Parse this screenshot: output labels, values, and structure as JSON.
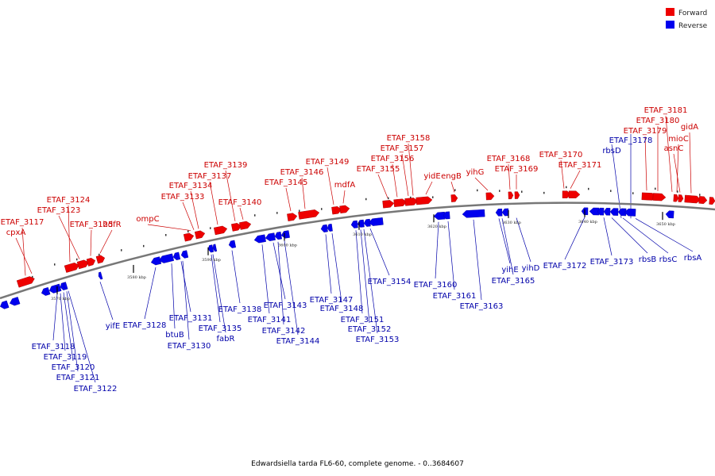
{
  "caption": "Edwardsiella tarda FL6-60, complete genome. - 0..3684607",
  "legend": [
    {
      "label": "Forward",
      "color": "#ee0000"
    },
    {
      "label": "Reverse",
      "color": "#0000ee"
    }
  ],
  "colors": {
    "forward": "#ee0000",
    "reverse": "#0000ee",
    "backbone": "#777777",
    "leader_fwd": "#cc0000",
    "leader_rev": "#0000aa"
  },
  "ticks": [
    "3570 kbp",
    "3580 kbp",
    "3590 kbp",
    "3600 kbp",
    "3610 kbp",
    "3620 kbp",
    "3630 kbp",
    "3640 kbp",
    "3650 kbp"
  ],
  "forward_genes": [
    "ETAF_3117",
    "cpxA",
    "ETAF_3124",
    "ETAF_3123",
    "ETAF_3125",
    "hdfR",
    "ompC",
    "ETAF_3133",
    "ETAF_3134",
    "ETAF_3137",
    "ETAF_3139",
    "ETAF_3140",
    "ETAF_3145",
    "ETAF_3146",
    "ETAF_3149",
    "mdfA",
    "ETAF_3155",
    "ETAF_3156",
    "ETAF_3157",
    "ETAF_3158",
    "yidE",
    "engB",
    "yihG",
    "ETAF_3168",
    "ETAF_3169",
    "ETAF_3170",
    "ETAF_3171",
    "ETAF_3179",
    "ETAF_3180",
    "ETAF_3181",
    "mioC",
    "asnC",
    "gidA"
  ],
  "reverse_genes": [
    "ETAF_3118",
    "ETAF_3119",
    "ETAF_3120",
    "ETAF_3121",
    "ETAF_3122",
    "yifE",
    "ETAF_3128",
    "btuB",
    "ETAF_3131",
    "ETAF_3130",
    "ETAF_3135",
    "fabR",
    "ETAF_3138",
    "ETAF_3141",
    "ETAF_3143",
    "ETAF_3142",
    "ETAF_3144",
    "ETAF_3147",
    "ETAF_3148",
    "ETAF_3151",
    "ETAF_3152",
    "ETAF_3153",
    "ETAF_3154",
    "ETAF_3160",
    "ETAF_3161",
    "ETAF_3163",
    "yihE",
    "ETAF_3165",
    "yihD",
    "ETAF_3172",
    "ETAF_3173",
    "rbsB",
    "rbsC",
    "rbsA",
    "rbsD",
    "ETAF_3178"
  ]
}
